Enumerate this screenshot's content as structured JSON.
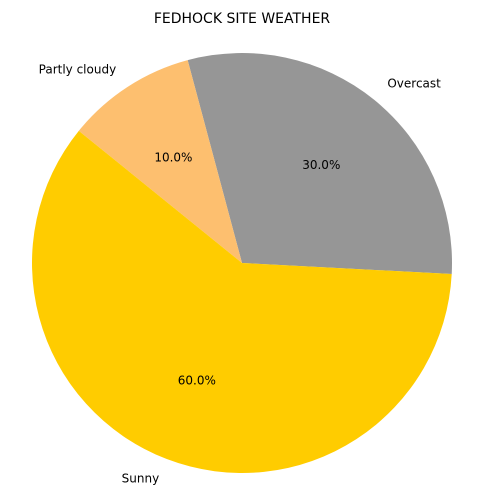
{
  "chart_data": {
    "type": "pie",
    "title": "FEDHOCK SITE WEATHER",
    "labels": [
      "Overcast",
      "Partly cloudy",
      "Sunny"
    ],
    "values": [
      30.0,
      10.0,
      60.0
    ],
    "percent_labels": [
      "30.0%",
      "10.0%",
      "60.0%"
    ],
    "colors": [
      "#969696",
      "#fdbf6f",
      "#ffcc00"
    ],
    "start_angle_deg": -3,
    "direction": "counterclockwise",
    "legend": "none"
  }
}
